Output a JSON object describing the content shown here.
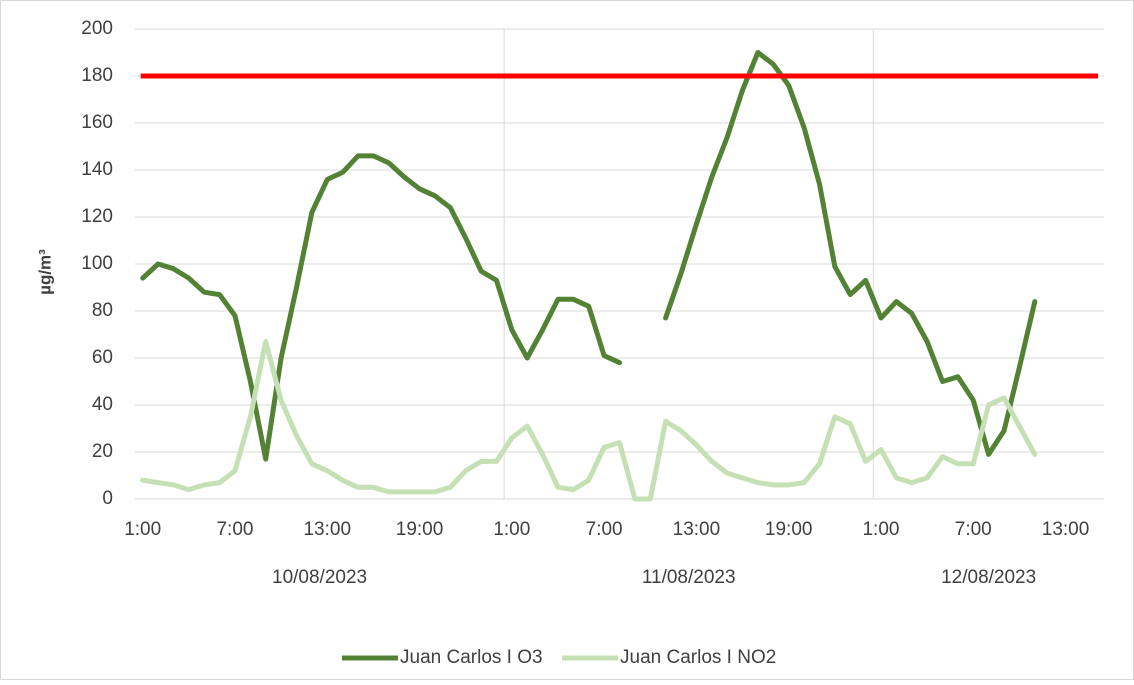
{
  "chart_data": {
    "type": "line",
    "y_label": "µg/m³",
    "categories": [
      "1:00",
      null,
      null,
      null,
      null,
      null,
      "7:00",
      null,
      null,
      null,
      null,
      null,
      "13:00",
      null,
      null,
      null,
      null,
      null,
      "19:00",
      null,
      null,
      null,
      null,
      null,
      "1:00",
      null,
      null,
      null,
      null,
      null,
      "7:00",
      null,
      null,
      null,
      null,
      null,
      "13:00",
      null,
      null,
      null,
      null,
      null,
      "19:00",
      null,
      null,
      null,
      null,
      null,
      "1:00",
      null,
      null,
      null,
      null,
      null,
      "7:00",
      null,
      null,
      null,
      null,
      null,
      "13:00",
      null,
      null
    ],
    "day_groups": [
      {
        "label": "10/08/2023",
        "count": 24
      },
      {
        "label": "11/08/2023",
        "count": 24
      },
      {
        "label": "12/08/2023",
        "count": 15
      }
    ],
    "series": [
      {
        "name": "Juan Carlos I O3",
        "color": "#548235",
        "values": [
          94,
          100,
          98,
          94,
          88,
          87,
          78,
          50,
          17,
          60,
          90,
          122,
          136,
          139,
          146,
          146,
          143,
          137,
          132,
          129,
          124,
          111,
          97,
          93,
          72,
          60,
          72,
          85,
          85,
          82,
          61,
          58,
          null,
          null,
          77,
          96,
          117,
          137,
          154,
          174,
          190,
          185,
          176,
          158,
          134,
          99,
          87,
          93,
          77,
          84,
          79,
          67,
          50,
          52,
          42,
          19,
          29,
          56,
          84,
          null,
          null,
          null,
          null
        ]
      },
      {
        "name": "Juan Carlos I NO2",
        "color": "#c5e0b4",
        "values": [
          8,
          7,
          6,
          4,
          6,
          7,
          12,
          35,
          67,
          42,
          27,
          15,
          12,
          8,
          5,
          5,
          3,
          3,
          3,
          3,
          5,
          12,
          16,
          16,
          26,
          31,
          19,
          5,
          4,
          8,
          22,
          24,
          0,
          0,
          33,
          29,
          23,
          16,
          11,
          9,
          7,
          6,
          6,
          7,
          15,
          35,
          32,
          16,
          21,
          9,
          7,
          9,
          18,
          15,
          15,
          40,
          43,
          31,
          19,
          null,
          null,
          null,
          null
        ]
      }
    ],
    "threshold": {
      "value": 180,
      "color": "#ff0000"
    },
    "ylim": [
      0,
      200
    ],
    "yticks": [
      0,
      20,
      40,
      60,
      80,
      100,
      120,
      140,
      160,
      180,
      200
    ],
    "grid": true,
    "legend": "bottom"
  }
}
